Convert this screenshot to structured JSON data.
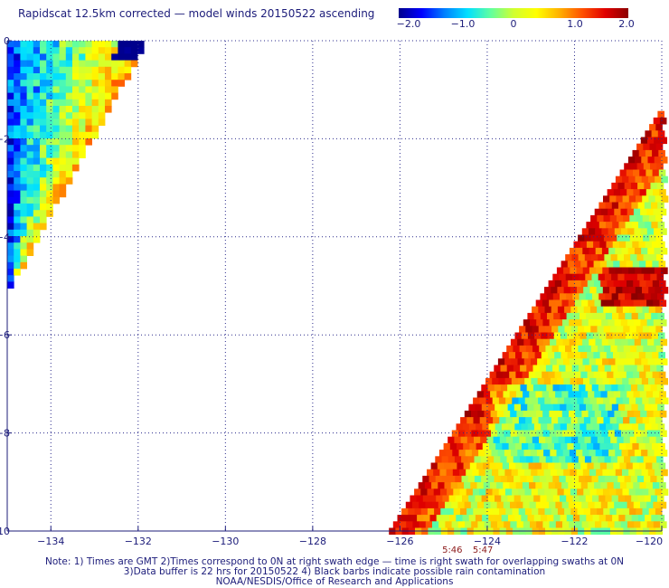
{
  "title": "Rapidscat 12.5km corrected — model winds 20150522 ascending",
  "colorbar": {
    "ticks": [
      "−2.0",
      "−1.0",
      "0",
      "1.0",
      "2.0"
    ],
    "range": [
      -2.0,
      2.0
    ],
    "colors": [
      "#00008c",
      "#0000ff",
      "#0080ff",
      "#00e0ff",
      "#60ffa0",
      "#d0ff30",
      "#ffff00",
      "#ffb000",
      "#ff5000",
      "#e00000",
      "#8c0000"
    ]
  },
  "chart_data": {
    "type": "heatmap",
    "title": "Rapidscat 12.5km corrected — model winds 20150522 ascending",
    "xlim": [
      -135,
      -120
    ],
    "ylim": [
      -10,
      0
    ],
    "x_ticks": [
      "−134",
      "−132",
      "−130",
      "−128",
      "−126",
      "−124",
      "−122",
      "−120"
    ],
    "x_tick_values": [
      -134,
      -132,
      -130,
      -128,
      -126,
      -124,
      -122,
      -120
    ],
    "y_ticks": [
      "0",
      "−2",
      "−4",
      "−6",
      "−8",
      "−10"
    ],
    "y_tick_values": [
      0,
      -2,
      -4,
      -6,
      -8,
      -10
    ],
    "grid": true,
    "swath_times": [
      {
        "label": "5:46",
        "lon": -124.8
      },
      {
        "label": "5:47",
        "lon": -124.1
      }
    ],
    "swaths": [
      {
        "side": "left",
        "lon_min": -135,
        "lon_east_at_top": -131.9,
        "lon_east_at_bottom": -135,
        "lat_bottom": -5.0,
        "mean_value": -0.6
      },
      {
        "side": "right",
        "lon_max": -120,
        "lon_west_at_top": -120,
        "lon_west_at_bottom": -126.3,
        "lat_top": -1.3,
        "mean_value": 0.5
      }
    ]
  },
  "notes": {
    "line1": "Note: 1) Times are GMT 2)Times correspond to 0N at right swath edge — time is right swath for overlapping swaths at 0N",
    "line2": "3)Data buffer is 22 hrs for 20150522 4) Black barbs indicate possible rain contamination",
    "line3": "NOAA/NESDIS/Office of Research and Applications"
  }
}
